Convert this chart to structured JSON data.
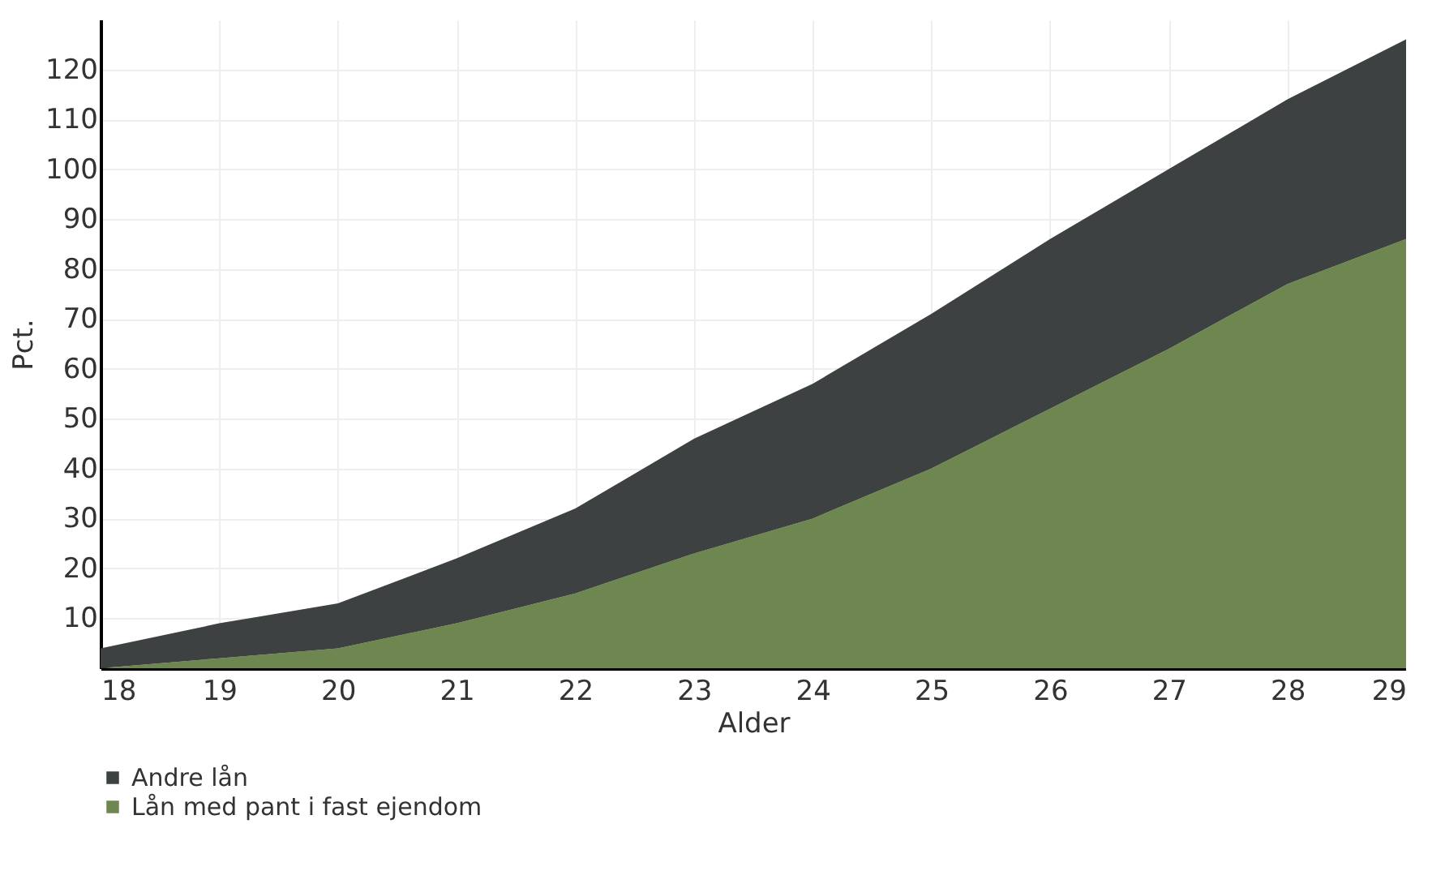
{
  "chart_data": {
    "type": "area",
    "stacked": true,
    "xlabel": "Alder",
    "ylabel": "Pct.",
    "x": [
      18,
      19,
      20,
      21,
      22,
      23,
      24,
      25,
      26,
      27,
      28,
      29
    ],
    "series": [
      {
        "name": "Lån med pant i fast ejendom",
        "color": "#6e8750",
        "values": [
          0,
          2,
          4,
          9,
          15,
          23,
          30,
          40,
          52,
          64,
          77,
          86
        ]
      },
      {
        "name": "Andre lån",
        "color": "#3d4141",
        "values": [
          4,
          7,
          9,
          13,
          17,
          23,
          27,
          31,
          34,
          36,
          37,
          40
        ]
      }
    ],
    "xlim": [
      18,
      29
    ],
    "xticks": [
      18,
      19,
      20,
      21,
      22,
      23,
      24,
      25,
      26,
      27,
      28,
      29
    ],
    "ylim": [
      0,
      130
    ],
    "yticks": [
      10,
      20,
      30,
      40,
      50,
      60,
      70,
      80,
      90,
      100,
      110,
      120
    ],
    "grid": true,
    "legend": "bottom"
  }
}
